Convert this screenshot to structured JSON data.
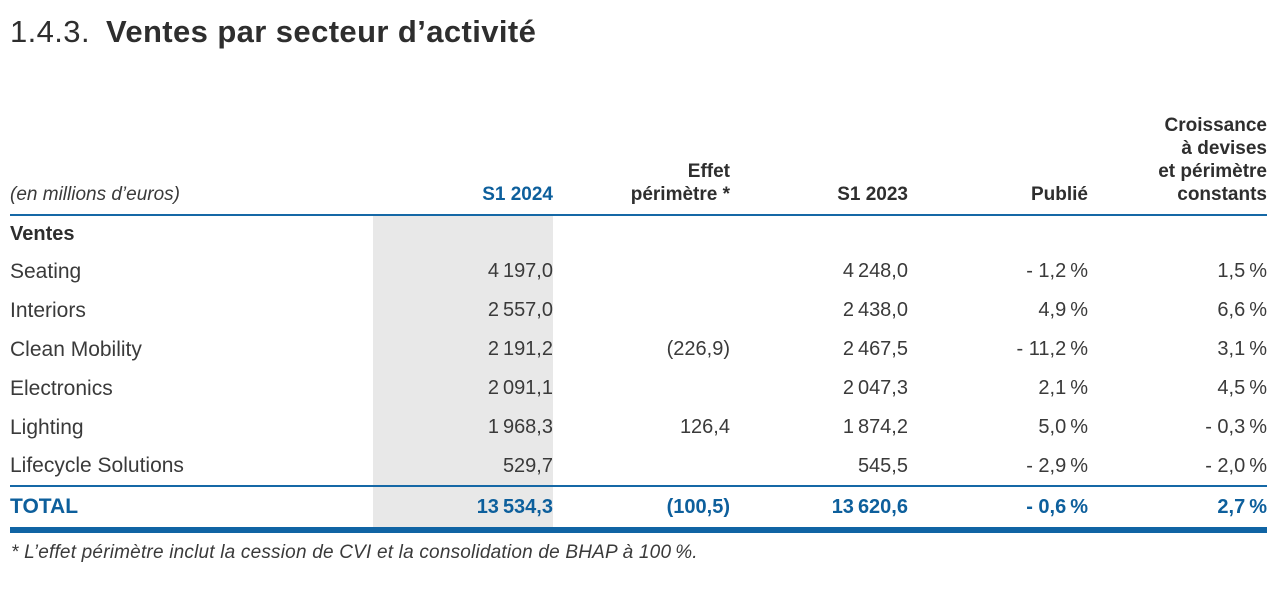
{
  "heading": {
    "number": "1.4.3.",
    "title": "Ventes par secteur d’activité"
  },
  "table": {
    "unit_label": "(en millions d’euros)",
    "headers": {
      "s1_2024": "S1 2024",
      "effet_perimetre": "Effet\npérimètre *",
      "s1_2023": "S1 2023",
      "publie": "Publié",
      "croissance": "Croissance\nà devises\net périmètre\nconstants"
    },
    "section_label": "Ventes",
    "rows": [
      {
        "label": "Seating",
        "s1_2024": "4 197,0",
        "effet": "",
        "s1_2023": "4 248,0",
        "publie": "- 1,2 %",
        "croissance": "1,5 %"
      },
      {
        "label": "Interiors",
        "s1_2024": "2 557,0",
        "effet": "",
        "s1_2023": "2 438,0",
        "publie": "4,9 %",
        "croissance": "6,6 %"
      },
      {
        "label": "Clean Mobility",
        "s1_2024": "2 191,2",
        "effet": "(226,9)",
        "s1_2023": "2 467,5",
        "publie": "- 11,2 %",
        "croissance": "3,1 %"
      },
      {
        "label": "Electronics",
        "s1_2024": "2 091,1",
        "effet": "",
        "s1_2023": "2 047,3",
        "publie": "2,1 %",
        "croissance": "4,5 %"
      },
      {
        "label": "Lighting",
        "s1_2024": "1 968,3",
        "effet": "126,4",
        "s1_2023": "1 874,2",
        "publie": "5,0 %",
        "croissance": "- 0,3 %"
      },
      {
        "label": "Lifecycle Solutions",
        "s1_2024": "529,7",
        "effet": "",
        "s1_2023": "545,5",
        "publie": "- 2,9 %",
        "croissance": "- 2,0 %"
      }
    ],
    "total": {
      "label": "TOTAL",
      "s1_2024": "13 534,3",
      "effet": "(100,5)",
      "s1_2023": "13 620,6",
      "publie": "- 0,6 %",
      "croissance": "2,7 %"
    }
  },
  "footnote": "* L’effet périmètre inclut la cession de CVI et la consolidation de BHAP à 100 %.",
  "colors": {
    "accent_blue_text": "#0d5f9c",
    "rule_blue": "#1568a6",
    "column_shade_gray": "#e8e8e8",
    "text_dark": "#3a3a3a"
  }
}
